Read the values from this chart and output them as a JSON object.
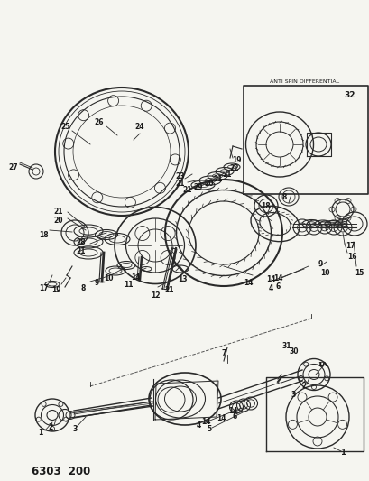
{
  "title": "6303  200",
  "bg_color": "#f5f5f0",
  "line_color": "#2a2a2a",
  "text_color": "#1a1a1a",
  "figsize": [
    4.1,
    5.33
  ],
  "dpi": 100,
  "inset2_caption": "ANTI SPIN DIFFERENTIAL"
}
